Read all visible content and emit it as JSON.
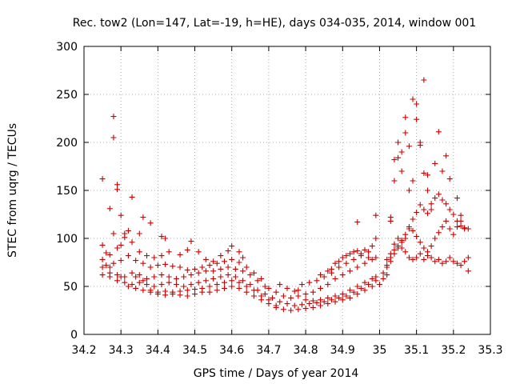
{
  "chart_data": {
    "type": "scatter",
    "title": "Rec. tow2 (Lon=147, Lat=-19, h=HE), days 034-035, 2014, window 001",
    "xlabel": "GPS time / Days of year 2014",
    "ylabel": "STEC from uqrg / TECUs",
    "xlim": [
      34.2,
      35.3
    ],
    "ylim": [
      0,
      300
    ],
    "xticks": [
      "34.2",
      "34.3",
      "34.4",
      "34.5",
      "34.6",
      "34.7",
      "34.8",
      "34.9",
      "35",
      "35.1",
      "35.2",
      "35.3"
    ],
    "yticks": [
      "0",
      "50",
      "100",
      "150",
      "200",
      "250",
      "300"
    ],
    "grid": true,
    "marker": "+",
    "color": "#cc0000",
    "points": [
      [
        34.25,
        162
      ],
      [
        34.27,
        131
      ],
      [
        34.28,
        227
      ],
      [
        34.28,
        205
      ],
      [
        34.29,
        156
      ],
      [
        34.29,
        151
      ],
      [
        34.3,
        124
      ],
      [
        34.31,
        101
      ],
      [
        34.32,
        108
      ],
      [
        34.33,
        143
      ],
      [
        34.35,
        105
      ],
      [
        34.36,
        122
      ],
      [
        34.38,
        116
      ],
      [
        34.41,
        102
      ],
      [
        34.42,
        100
      ],
      [
        34.25,
        93
      ],
      [
        34.26,
        85
      ],
      [
        34.27,
        83
      ],
      [
        34.28,
        105
      ],
      [
        34.29,
        90
      ],
      [
        34.3,
        93
      ],
      [
        34.31,
        105
      ],
      [
        34.33,
        96
      ],
      [
        34.35,
        86
      ],
      [
        34.37,
        82
      ],
      [
        34.39,
        80
      ],
      [
        34.41,
        82
      ],
      [
        34.43,
        86
      ],
      [
        34.46,
        83
      ],
      [
        34.48,
        88
      ],
      [
        34.49,
        97
      ],
      [
        34.51,
        86
      ],
      [
        34.53,
        78
      ],
      [
        34.55,
        76
      ],
      [
        34.57,
        82
      ],
      [
        34.59,
        87
      ],
      [
        34.6,
        92
      ],
      [
        34.62,
        86
      ],
      [
        34.63,
        80
      ],
      [
        34.25,
        78
      ],
      [
        34.26,
        72
      ],
      [
        34.27,
        70
      ],
      [
        34.28,
        74
      ],
      [
        34.3,
        77
      ],
      [
        34.32,
        82
      ],
      [
        34.34,
        77
      ],
      [
        34.36,
        74
      ],
      [
        34.38,
        70
      ],
      [
        34.4,
        72
      ],
      [
        34.42,
        73
      ],
      [
        34.44,
        71
      ],
      [
        34.46,
        70
      ],
      [
        34.48,
        67
      ],
      [
        34.5,
        68
      ],
      [
        34.52,
        70
      ],
      [
        34.54,
        72
      ],
      [
        34.56,
        74
      ],
      [
        34.58,
        76
      ],
      [
        34.6,
        78
      ],
      [
        34.62,
        75
      ],
      [
        34.64,
        70
      ],
      [
        34.66,
        64
      ],
      [
        34.68,
        58
      ],
      [
        34.25,
        70
      ],
      [
        34.27,
        64
      ],
      [
        34.29,
        62
      ],
      [
        34.31,
        60
      ],
      [
        34.33,
        64
      ],
      [
        34.35,
        62
      ],
      [
        34.37,
        58
      ],
      [
        34.39,
        60
      ],
      [
        34.41,
        62
      ],
      [
        34.43,
        60
      ],
      [
        34.45,
        58
      ],
      [
        34.47,
        60
      ],
      [
        34.49,
        62
      ],
      [
        34.51,
        64
      ],
      [
        34.53,
        66
      ],
      [
        34.55,
        66
      ],
      [
        34.57,
        68
      ],
      [
        34.59,
        70
      ],
      [
        34.61,
        68
      ],
      [
        34.63,
        66
      ],
      [
        34.65,
        62
      ],
      [
        34.67,
        56
      ],
      [
        34.69,
        50
      ],
      [
        34.25,
        62
      ],
      [
        34.27,
        60
      ],
      [
        34.29,
        56
      ],
      [
        34.31,
        54
      ],
      [
        34.33,
        52
      ],
      [
        34.35,
        54
      ],
      [
        34.37,
        52
      ],
      [
        34.39,
        50
      ],
      [
        34.41,
        52
      ],
      [
        34.43,
        54
      ],
      [
        34.45,
        52
      ],
      [
        34.47,
        50
      ],
      [
        34.49,
        52
      ],
      [
        34.51,
        54
      ],
      [
        34.53,
        56
      ],
      [
        34.55,
        58
      ],
      [
        34.57,
        60
      ],
      [
        34.59,
        62
      ],
      [
        34.61,
        60
      ],
      [
        34.63,
        56
      ],
      [
        34.65,
        52
      ],
      [
        34.67,
        46
      ],
      [
        34.69,
        42
      ],
      [
        34.3,
        60
      ],
      [
        34.32,
        50
      ],
      [
        34.34,
        48
      ],
      [
        34.36,
        46
      ],
      [
        34.38,
        46
      ],
      [
        34.4,
        44
      ],
      [
        34.42,
        45
      ],
      [
        34.44,
        44
      ],
      [
        34.46,
        45
      ],
      [
        34.48,
        46
      ],
      [
        34.5,
        47
      ],
      [
        34.52,
        48
      ],
      [
        34.54,
        50
      ],
      [
        34.56,
        52
      ],
      [
        34.58,
        54
      ],
      [
        34.6,
        56
      ],
      [
        34.62,
        54
      ],
      [
        34.64,
        50
      ],
      [
        34.66,
        46
      ],
      [
        34.68,
        40
      ],
      [
        34.7,
        36
      ],
      [
        34.34,
        60
      ],
      [
        34.36,
        56
      ],
      [
        34.38,
        44
      ],
      [
        34.4,
        42
      ],
      [
        34.42,
        41
      ],
      [
        34.44,
        42
      ],
      [
        34.46,
        41
      ],
      [
        34.48,
        40
      ],
      [
        34.5,
        42
      ],
      [
        34.52,
        44
      ],
      [
        34.54,
        44
      ],
      [
        34.56,
        46
      ],
      [
        34.58,
        48
      ],
      [
        34.6,
        50
      ],
      [
        34.62,
        48
      ],
      [
        34.64,
        44
      ],
      [
        34.66,
        40
      ],
      [
        34.68,
        36
      ],
      [
        34.7,
        32
      ],
      [
        34.72,
        30
      ],
      [
        34.7,
        48
      ],
      [
        34.72,
        44
      ],
      [
        34.74,
        40
      ],
      [
        34.76,
        38
      ],
      [
        34.78,
        40
      ],
      [
        34.8,
        36
      ],
      [
        34.82,
        35
      ],
      [
        34.84,
        36
      ],
      [
        34.86,
        38
      ],
      [
        34.88,
        40
      ],
      [
        34.9,
        42
      ],
      [
        34.92,
        46
      ],
      [
        34.94,
        50
      ],
      [
        34.96,
        54
      ],
      [
        34.98,
        58
      ],
      [
        34.71,
        38
      ],
      [
        34.73,
        34
      ],
      [
        34.75,
        32
      ],
      [
        34.77,
        30
      ],
      [
        34.79,
        31
      ],
      [
        34.81,
        32
      ],
      [
        34.83,
        33
      ],
      [
        34.85,
        34
      ],
      [
        34.87,
        36
      ],
      [
        34.89,
        38
      ],
      [
        34.91,
        40
      ],
      [
        34.93,
        44
      ],
      [
        34.95,
        48
      ],
      [
        34.97,
        52
      ],
      [
        34.99,
        56
      ],
      [
        34.72,
        28
      ],
      [
        34.74,
        26
      ],
      [
        34.76,
        25
      ],
      [
        34.78,
        26
      ],
      [
        34.8,
        27
      ],
      [
        34.82,
        28
      ],
      [
        34.84,
        30
      ],
      [
        34.86,
        32
      ],
      [
        34.88,
        34
      ],
      [
        34.9,
        36
      ],
      [
        34.92,
        38
      ],
      [
        34.94,
        42
      ],
      [
        34.96,
        46
      ],
      [
        34.98,
        50
      ],
      [
        34.73,
        52
      ],
      [
        34.75,
        48
      ],
      [
        34.77,
        45
      ],
      [
        34.79,
        52
      ],
      [
        34.81,
        54
      ],
      [
        34.83,
        56
      ],
      [
        34.85,
        60
      ],
      [
        34.87,
        64
      ],
      [
        34.89,
        70
      ],
      [
        34.91,
        74
      ],
      [
        34.93,
        78
      ],
      [
        34.95,
        82
      ],
      [
        34.97,
        86
      ],
      [
        34.78,
        46
      ],
      [
        34.8,
        42
      ],
      [
        34.82,
        44
      ],
      [
        34.84,
        48
      ],
      [
        34.86,
        52
      ],
      [
        34.88,
        58
      ],
      [
        34.9,
        62
      ],
      [
        34.92,
        66
      ],
      [
        34.94,
        70
      ],
      [
        34.96,
        74
      ],
      [
        34.98,
        78
      ],
      [
        34.99,
        80
      ],
      [
        34.84,
        62
      ],
      [
        34.86,
        66
      ],
      [
        34.88,
        74
      ],
      [
        34.9,
        80
      ],
      [
        34.92,
        84
      ],
      [
        34.94,
        87
      ],
      [
        34.96,
        88
      ],
      [
        34.98,
        92
      ],
      [
        34.99,
        100
      ],
      [
        34.99,
        124
      ],
      [
        34.94,
        117
      ],
      [
        34.87,
        68
      ],
      [
        34.89,
        76
      ],
      [
        34.91,
        82
      ],
      [
        34.93,
        86
      ],
      [
        34.95,
        84
      ],
      [
        34.97,
        80
      ],
      [
        34.99,
        60
      ],
      [
        35.0,
        52
      ],
      [
        35.01,
        58
      ],
      [
        35.02,
        62
      ],
      [
        35.02,
        78
      ],
      [
        35.03,
        118
      ],
      [
        35.03,
        122
      ],
      [
        35.04,
        160
      ],
      [
        35.04,
        182
      ],
      [
        35.05,
        184
      ],
      [
        35.05,
        200
      ],
      [
        35.06,
        190
      ],
      [
        35.06,
        170
      ],
      [
        35.07,
        226
      ],
      [
        35.07,
        210
      ],
      [
        35.08,
        196
      ],
      [
        35.08,
        150
      ],
      [
        35.09,
        245
      ],
      [
        35.09,
        160
      ],
      [
        35.1,
        240
      ],
      [
        35.1,
        224
      ],
      [
        35.11,
        200
      ],
      [
        35.11,
        197
      ],
      [
        35.12,
        265
      ],
      [
        35.12,
        168
      ],
      [
        35.13,
        166
      ],
      [
        35.13,
        150
      ],
      [
        35.14,
        130
      ],
      [
        35.15,
        178
      ],
      [
        35.16,
        211
      ],
      [
        35.17,
        170
      ],
      [
        35.18,
        186
      ],
      [
        35.19,
        162
      ],
      [
        35.21,
        142
      ],
      [
        35.22,
        124
      ],
      [
        35.01,
        64
      ],
      [
        35.02,
        70
      ],
      [
        35.03,
        76
      ],
      [
        35.04,
        84
      ],
      [
        35.05,
        90
      ],
      [
        35.06,
        96
      ],
      [
        35.07,
        100
      ],
      [
        35.08,
        110
      ],
      [
        35.09,
        120
      ],
      [
        35.1,
        127
      ],
      [
        35.11,
        135
      ],
      [
        35.12,
        130
      ],
      [
        35.13,
        126
      ],
      [
        35.14,
        136
      ],
      [
        35.15,
        142
      ],
      [
        35.16,
        146
      ],
      [
        35.17,
        140
      ],
      [
        35.18,
        136
      ],
      [
        35.19,
        130
      ],
      [
        35.2,
        125
      ],
      [
        35.21,
        118
      ],
      [
        35.22,
        113
      ],
      [
        35.23,
        111
      ],
      [
        35.24,
        110
      ],
      [
        35.02,
        72
      ],
      [
        35.03,
        80
      ],
      [
        35.04,
        88
      ],
      [
        35.05,
        92
      ],
      [
        35.06,
        98
      ],
      [
        35.07,
        104
      ],
      [
        35.08,
        112
      ],
      [
        35.09,
        108
      ],
      [
        35.1,
        102
      ],
      [
        35.11,
        96
      ],
      [
        35.12,
        90
      ],
      [
        35.13,
        86
      ],
      [
        35.14,
        92
      ],
      [
        35.15,
        100
      ],
      [
        35.16,
        106
      ],
      [
        35.17,
        112
      ],
      [
        35.18,
        118
      ],
      [
        35.19,
        110
      ],
      [
        35.2,
        104
      ],
      [
        35.21,
        112
      ],
      [
        35.22,
        118
      ],
      [
        35.23,
        110
      ],
      [
        35.03,
        84
      ],
      [
        35.04,
        94
      ],
      [
        35.05,
        100
      ],
      [
        35.06,
        90
      ],
      [
        35.07,
        86
      ],
      [
        35.08,
        80
      ],
      [
        35.09,
        78
      ],
      [
        35.1,
        80
      ],
      [
        35.11,
        84
      ],
      [
        35.12,
        78
      ],
      [
        35.13,
        82
      ],
      [
        35.14,
        80
      ],
      [
        35.15,
        76
      ],
      [
        35.16,
        78
      ],
      [
        35.17,
        74
      ],
      [
        35.18,
        76
      ],
      [
        35.19,
        80
      ],
      [
        35.2,
        76
      ],
      [
        35.21,
        74
      ],
      [
        35.22,
        72
      ],
      [
        35.23,
        76
      ],
      [
        35.24,
        80
      ],
      [
        35.24,
        66
      ]
    ]
  }
}
